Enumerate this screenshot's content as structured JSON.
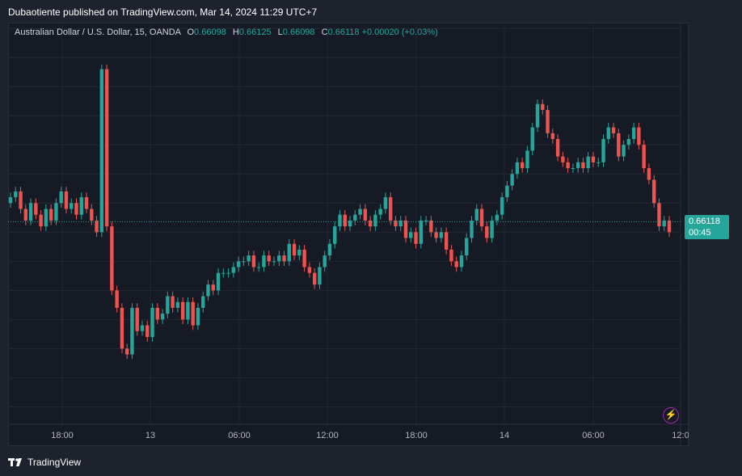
{
  "header": {
    "publisher_line": "Dubaotiente published on TradingView.com, Mar 14, 2024 11:29 UTC+7"
  },
  "legend": {
    "symbol": "Australian Dollar / U.S. Dollar, 15, OANDA",
    "o_label": "O",
    "o_value": "0.66098",
    "h_label": "H",
    "h_value": "0.66125",
    "l_label": "L",
    "l_value": "0.66098",
    "c_label": "C",
    "c_value": "0.66118",
    "change": "+0.00020 (+0.03%)"
  },
  "last_price": {
    "price": "0.66118",
    "countdown": "00:45"
  },
  "footer": {
    "brand": "TradingView"
  },
  "icons": {
    "alert": "lightning-bolt-icon",
    "logo": "tradingview-logo-icon"
  },
  "colors": {
    "up": "#26a69a",
    "down": "#ef5350",
    "bg": "#161a25"
  },
  "chart_data": {
    "type": "candlestick",
    "y_ticks": [
      "0.66450",
      "0.66400",
      "0.66350",
      "0.66300",
      "0.66250",
      "0.66200",
      "0.66150",
      "0.66100",
      "0.66050",
      "0.66000",
      "0.65950",
      "0.65900",
      "0.65850",
      "0.65800"
    ],
    "x_ticks": [
      "18:00",
      "13",
      "06:00",
      "12:00",
      "18:00",
      "14",
      "06:00",
      "12:0"
    ],
    "ylim": [
      0.6577,
      0.6646
    ],
    "grid": true,
    "series": [
      {
        "values": [
          0.6616,
          0.6617,
          0.6614,
          0.6612,
          0.6615,
          0.6613,
          0.6611,
          0.6614,
          0.6612,
          0.6615,
          0.6617,
          0.6614,
          0.6615,
          0.6613,
          0.6616,
          0.6614,
          0.6612,
          0.661,
          0.6638,
          0.6611,
          0.66,
          0.6597,
          0.659,
          0.6589,
          0.6597,
          0.6593,
          0.6594,
          0.6592,
          0.6597,
          0.6595,
          0.6596,
          0.6599,
          0.6597,
          0.6598,
          0.6595,
          0.6598,
          0.6594,
          0.6597,
          0.6599,
          0.6601,
          0.66,
          0.6603,
          0.6603,
          0.6603,
          0.6604,
          0.6605,
          0.6605,
          0.6606,
          0.6604,
          0.6604,
          0.6606,
          0.6605,
          0.6605,
          0.6606,
          0.6605,
          0.6608,
          0.6606,
          0.6607,
          0.6604,
          0.6603,
          0.6601,
          0.6604,
          0.6606,
          0.6608,
          0.6611,
          0.6613,
          0.6611,
          0.6612,
          0.6613,
          0.6614,
          0.6612,
          0.6611,
          0.6613,
          0.6614,
          0.6616,
          0.6612,
          0.6611,
          0.6612,
          0.6609,
          0.661,
          0.6608,
          0.6612,
          0.6612,
          0.661,
          0.6609,
          0.661,
          0.6607,
          0.6605,
          0.6604,
          0.6606,
          0.6609,
          0.6612,
          0.6614,
          0.6611,
          0.6609,
          0.6612,
          0.6613,
          0.6616,
          0.6618,
          0.662,
          0.6622,
          0.6621,
          0.6624,
          0.6628,
          0.6632,
          0.6631,
          0.6627,
          0.6626,
          0.6623,
          0.6622,
          0.6621,
          0.6621,
          0.6622,
          0.6621,
          0.6623,
          0.6622,
          0.6622,
          0.6626,
          0.6628,
          0.6627,
          0.6623,
          0.6625,
          0.6626,
          0.6628,
          0.6625,
          0.6621,
          0.6619,
          0.6615,
          0.6611,
          0.6612,
          0.661
        ]
      }
    ]
  }
}
